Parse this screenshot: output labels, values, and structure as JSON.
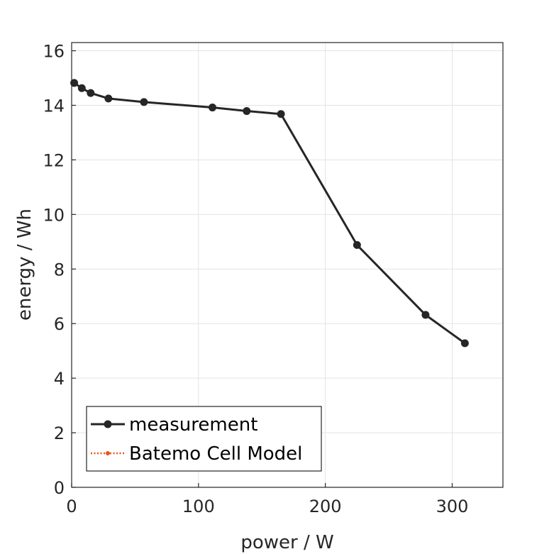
{
  "chart_data": {
    "type": "line",
    "xlabel": "power / W",
    "ylabel": "energy / Wh",
    "xlim": [
      0,
      340
    ],
    "ylim": [
      0,
      16.3
    ],
    "xticks": [
      0,
      100,
      200,
      300
    ],
    "yticks": [
      0,
      2,
      4,
      6,
      8,
      10,
      12,
      14,
      16
    ],
    "grid": true,
    "legend_position": "bottom-left",
    "series": [
      {
        "name": "measurement",
        "color": "#262626",
        "marker": "circle",
        "line_style": "solid",
        "x": [
          2,
          8,
          15,
          29,
          57,
          111,
          138,
          165,
          225,
          279,
          310
        ],
        "y": [
          14.82,
          14.63,
          14.45,
          14.25,
          14.12,
          13.92,
          13.79,
          13.68,
          8.88,
          6.32,
          5.28
        ]
      },
      {
        "name": "Batemo Cell Model",
        "color": "#e8571a",
        "marker": "dot",
        "line_style": "dotted",
        "x": [],
        "y": []
      }
    ]
  }
}
